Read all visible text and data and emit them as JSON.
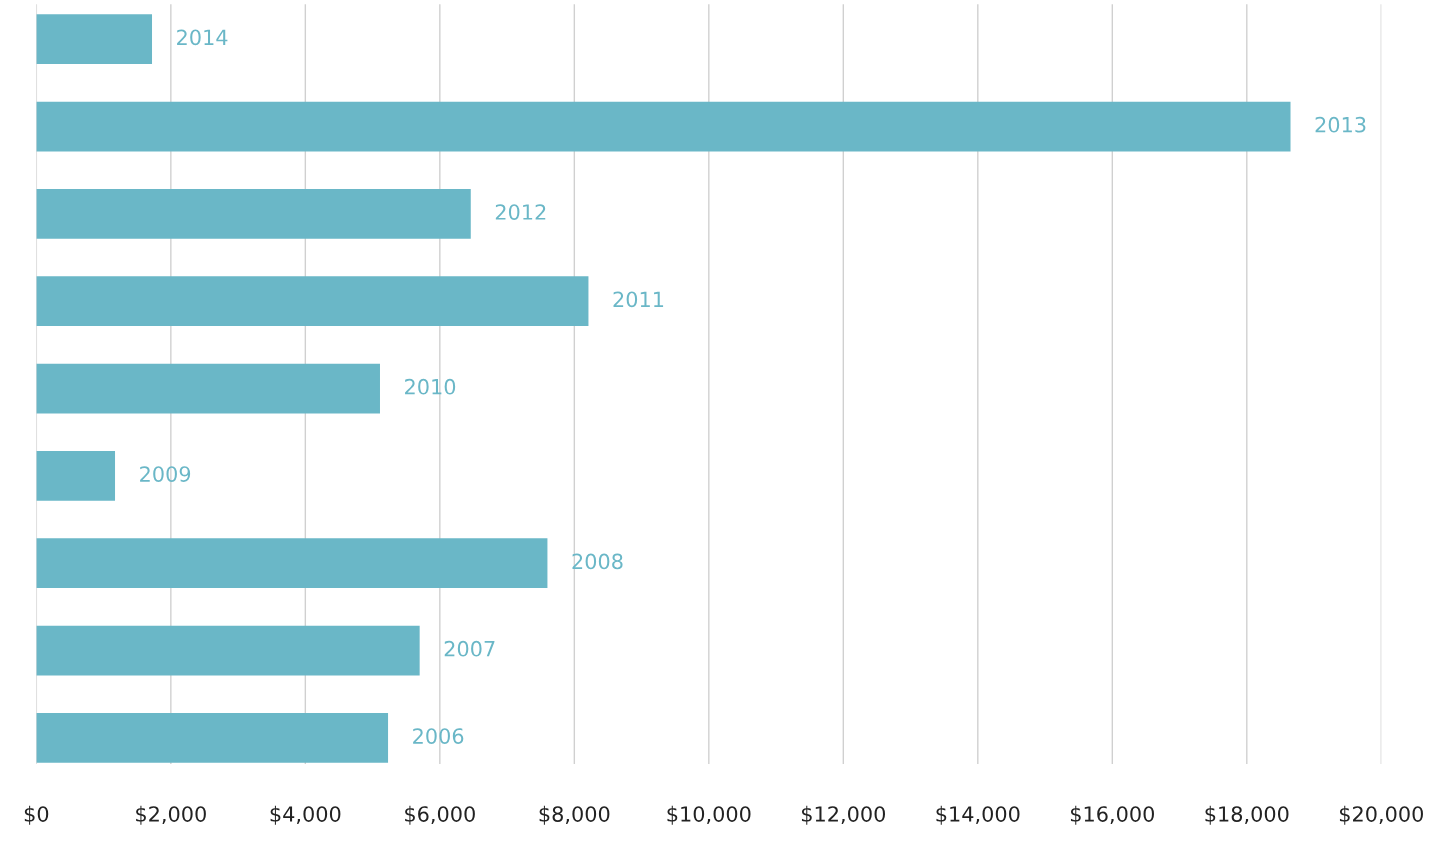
{
  "chart_data": {
    "type": "bar",
    "orientation": "horizontal",
    "categories": [
      "2014",
      "2013",
      "2012",
      "2011",
      "2010",
      "2009",
      "2008",
      "2007",
      "2006"
    ],
    "values": [
      1720,
      18650,
      6460,
      8210,
      5110,
      1170,
      7600,
      5700,
      5230
    ],
    "color": "#6ab7c7",
    "xlim": [
      0,
      20000
    ],
    "xticks": [
      {
        "value": 0,
        "label": "$0"
      },
      {
        "value": 2000,
        "label": "$2,000"
      },
      {
        "value": 4000,
        "label": "$4,000"
      },
      {
        "value": 6000,
        "label": "$6,000"
      },
      {
        "value": 8000,
        "label": "$8,000"
      },
      {
        "value": 10000,
        "label": "$10,000"
      },
      {
        "value": 12000,
        "label": "$12,000"
      },
      {
        "value": 14000,
        "label": "$14,000"
      },
      {
        "value": 16000,
        "label": "$16,000"
      },
      {
        "value": 18000,
        "label": "$18,000"
      },
      {
        "value": 20000,
        "label": "$20,000"
      }
    ],
    "grid": "x",
    "tick_labels": "x"
  }
}
